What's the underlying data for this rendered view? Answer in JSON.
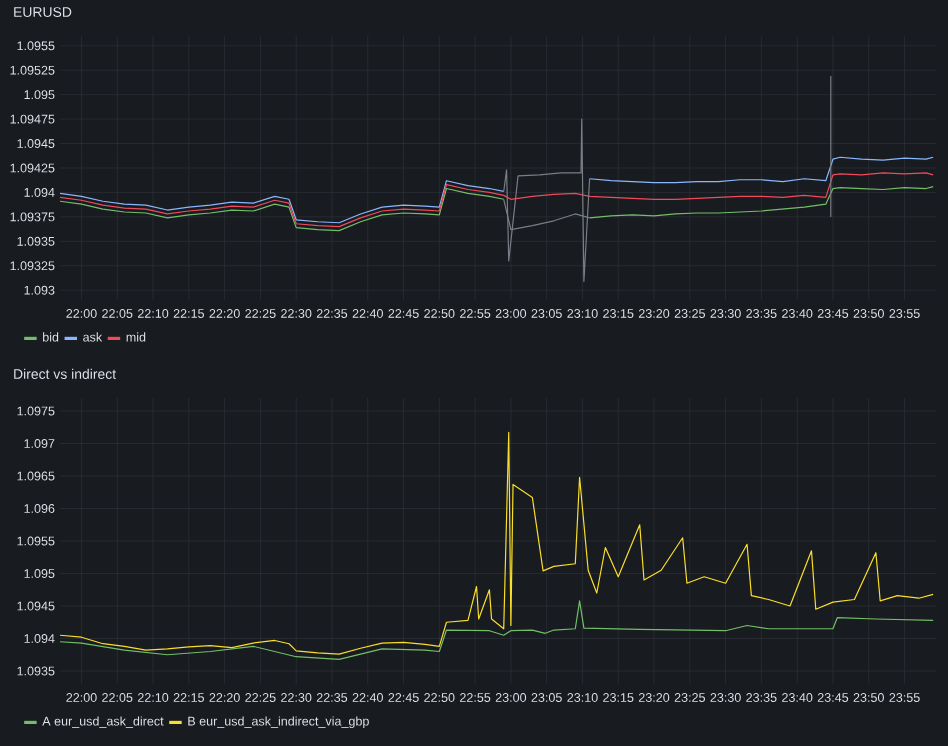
{
  "chart_data": [
    {
      "type": "line",
      "title": "EURUSD",
      "grid": true,
      "legend": "bottom",
      "xlim": [
        21.95,
        23.99
      ],
      "ylim": [
        1.0929,
        1.0956
      ],
      "xticks": [
        {
          "value": 22.0,
          "label": "22:00"
        },
        {
          "value": 22.0833,
          "label": "22:05"
        },
        {
          "value": 22.1667,
          "label": "22:10"
        },
        {
          "value": 22.25,
          "label": "22:15"
        },
        {
          "value": 22.3333,
          "label": "22:20"
        },
        {
          "value": 22.4167,
          "label": "22:25"
        },
        {
          "value": 22.5,
          "label": "22:30"
        },
        {
          "value": 22.5833,
          "label": "22:35"
        },
        {
          "value": 22.6667,
          "label": "22:40"
        },
        {
          "value": 22.75,
          "label": "22:45"
        },
        {
          "value": 22.8333,
          "label": "22:50"
        },
        {
          "value": 22.9167,
          "label": "22:55"
        },
        {
          "value": 23.0,
          "label": "23:00"
        },
        {
          "value": 23.0833,
          "label": "23:05"
        },
        {
          "value": 23.1667,
          "label": "23:10"
        },
        {
          "value": 23.25,
          "label": "23:15"
        },
        {
          "value": 23.3333,
          "label": "23:20"
        },
        {
          "value": 23.4167,
          "label": "23:25"
        },
        {
          "value": 23.5,
          "label": "23:30"
        },
        {
          "value": 23.5833,
          "label": "23:35"
        },
        {
          "value": 23.6667,
          "label": "23:40"
        },
        {
          "value": 23.75,
          "label": "23:45"
        },
        {
          "value": 23.8333,
          "label": "23:50"
        },
        {
          "value": 23.9167,
          "label": "23:55"
        }
      ],
      "yticks": [
        1.093,
        1.09325,
        1.0935,
        1.09375,
        1.094,
        1.09425,
        1.0945,
        1.09475,
        1.095,
        1.09525,
        1.0955
      ],
      "series": [
        {
          "name": "bid",
          "color": "#73bf69",
          "x": [
            21.95,
            22.0,
            22.05,
            22.1,
            22.15,
            22.2,
            22.25,
            22.3,
            22.35,
            22.4,
            22.45,
            22.4833,
            22.5,
            22.55,
            22.6,
            22.65,
            22.7,
            22.75,
            22.8,
            22.8333,
            22.85,
            22.9,
            22.95,
            22.9833,
            23.0,
            23.1833,
            23.2333,
            23.2833,
            23.3333,
            23.3833,
            23.4333,
            23.4833,
            23.5333,
            23.5833,
            23.6333,
            23.6833,
            23.7333,
            23.75,
            23.7667,
            23.8167,
            23.8667,
            23.9167,
            23.9667,
            23.9833
          ],
          "values": [
            1.09391,
            1.09388,
            1.09383,
            1.0938,
            1.09379,
            1.09374,
            1.09377,
            1.09379,
            1.09382,
            1.09381,
            1.09388,
            1.09385,
            1.09364,
            1.09362,
            1.09361,
            1.0937,
            1.09377,
            1.09379,
            1.09378,
            1.09377,
            1.09404,
            1.09399,
            1.09396,
            1.09393,
            null,
            1.09374,
            1.09376,
            1.09377,
            1.09376,
            1.09378,
            1.09379,
            1.09379,
            1.0938,
            1.09381,
            1.09383,
            1.09385,
            1.09388,
            1.09404,
            1.09405,
            1.09404,
            1.09403,
            1.09405,
            1.09404,
            1.09406
          ]
        },
        {
          "name": "ask",
          "color": "#8ab8ff",
          "x": [
            21.95,
            22.0,
            22.05,
            22.1,
            22.15,
            22.2,
            22.25,
            22.3,
            22.35,
            22.4,
            22.45,
            22.4833,
            22.5,
            22.55,
            22.6,
            22.65,
            22.7,
            22.75,
            22.8,
            22.8333,
            22.85,
            22.9,
            22.95,
            22.9833,
            23.0,
            23.1833,
            23.2333,
            23.2833,
            23.3333,
            23.3833,
            23.4333,
            23.4833,
            23.5333,
            23.5833,
            23.6333,
            23.6833,
            23.7333,
            23.75,
            23.7667,
            23.8167,
            23.8667,
            23.9167,
            23.9667,
            23.9833
          ],
          "values": [
            1.09399,
            1.09396,
            1.09391,
            1.09388,
            1.09387,
            1.09382,
            1.09385,
            1.09387,
            1.0939,
            1.09389,
            1.09396,
            1.09393,
            1.09372,
            1.0937,
            1.09369,
            1.09378,
            1.09385,
            1.09387,
            1.09386,
            1.09385,
            1.09412,
            1.09407,
            1.09404,
            1.09401,
            null,
            1.09414,
            1.09412,
            1.09411,
            1.0941,
            1.0941,
            1.09411,
            1.09411,
            1.09413,
            1.09413,
            1.09411,
            1.09414,
            1.09412,
            1.09434,
            1.09436,
            1.09434,
            1.09433,
            1.09435,
            1.09434,
            1.09436
          ]
        },
        {
          "name": "mid",
          "color": "#f2495c",
          "x": [
            21.95,
            22.0,
            22.05,
            22.1,
            22.15,
            22.2,
            22.25,
            22.3,
            22.35,
            22.4,
            22.45,
            22.4833,
            22.5,
            22.55,
            22.6,
            22.65,
            22.7,
            22.75,
            22.8,
            22.8333,
            22.85,
            22.9,
            22.95,
            22.9833,
            23.0,
            23.05,
            23.1,
            23.15,
            23.1833,
            23.2333,
            23.2833,
            23.3333,
            23.3833,
            23.4333,
            23.4833,
            23.5333,
            23.5833,
            23.6333,
            23.6833,
            23.7333,
            23.75,
            23.7667,
            23.8167,
            23.8667,
            23.9167,
            23.9667,
            23.9833
          ],
          "values": [
            1.09395,
            1.09392,
            1.09387,
            1.09384,
            1.09383,
            1.09378,
            1.09381,
            1.09383,
            1.09386,
            1.09385,
            1.09392,
            1.09389,
            1.09368,
            1.09366,
            1.09365,
            1.09374,
            1.09381,
            1.09383,
            1.09382,
            1.09381,
            1.09408,
            1.09403,
            1.094,
            1.09397,
            1.09393,
            1.09396,
            1.09398,
            1.09399,
            1.09396,
            1.09395,
            1.09394,
            1.09393,
            1.09393,
            1.09394,
            1.09395,
            1.09396,
            1.09396,
            1.09395,
            1.09397,
            1.09395,
            1.09418,
            1.09419,
            1.09418,
            1.0942,
            1.09419,
            1.0942,
            1.09418
          ]
        },
        {
          "color": "#7a7d85",
          "x": [
            22.9833,
            22.99,
            22.995,
            23.0167,
            23.0667,
            23.1167,
            23.1633,
            23.165,
            23.17,
            23.1833
          ],
          "values": [
            1.09401,
            1.09423,
            1.0933,
            1.09417,
            1.09418,
            1.0942,
            1.0942,
            1.09475,
            1.09309,
            1.09414
          ]
        },
        {
          "color": "#7a7d85",
          "x": [
            22.9833,
            23.0,
            23.05,
            23.1,
            23.15,
            23.1833
          ],
          "values": [
            1.09393,
            1.09362,
            1.09366,
            1.09371,
            1.09378,
            1.09374
          ]
        },
        {
          "color": "#7a7d85",
          "x": [
            23.745,
            23.745
          ],
          "values": [
            1.09519,
            1.09375
          ]
        }
      ]
    },
    {
      "type": "line",
      "title": "Direct vs indirect",
      "grid": true,
      "legend": "bottom",
      "xlim": [
        21.95,
        23.99
      ],
      "ylim": [
        1.0933,
        1.0977
      ],
      "xticks": [
        {
          "value": 22.0,
          "label": "22:00"
        },
        {
          "value": 22.0833,
          "label": "22:05"
        },
        {
          "value": 22.1667,
          "label": "22:10"
        },
        {
          "value": 22.25,
          "label": "22:15"
        },
        {
          "value": 22.3333,
          "label": "22:20"
        },
        {
          "value": 22.4167,
          "label": "22:25"
        },
        {
          "value": 22.5,
          "label": "22:30"
        },
        {
          "value": 22.5833,
          "label": "22:35"
        },
        {
          "value": 22.6667,
          "label": "22:40"
        },
        {
          "value": 22.75,
          "label": "22:45"
        },
        {
          "value": 22.8333,
          "label": "22:50"
        },
        {
          "value": 22.9167,
          "label": "22:55"
        },
        {
          "value": 23.0,
          "label": "23:00"
        },
        {
          "value": 23.0833,
          "label": "23:05"
        },
        {
          "value": 23.1667,
          "label": "23:10"
        },
        {
          "value": 23.25,
          "label": "23:15"
        },
        {
          "value": 23.3333,
          "label": "23:20"
        },
        {
          "value": 23.4167,
          "label": "23:25"
        },
        {
          "value": 23.5,
          "label": "23:30"
        },
        {
          "value": 23.5833,
          "label": "23:35"
        },
        {
          "value": 23.6667,
          "label": "23:40"
        },
        {
          "value": 23.75,
          "label": "23:45"
        },
        {
          "value": 23.8333,
          "label": "23:50"
        },
        {
          "value": 23.9167,
          "label": "23:55"
        }
      ],
      "yticks": [
        1.0935,
        1.094,
        1.0945,
        1.095,
        1.0955,
        1.096,
        1.0965,
        1.097,
        1.0975
      ],
      "series": [
        {
          "name": "A eur_usd_ask_direct",
          "color": "#73bf69",
          "x": [
            21.95,
            22.0,
            22.1,
            22.2,
            22.3,
            22.4,
            22.5,
            22.6,
            22.7,
            22.8,
            22.8333,
            22.85,
            22.95,
            22.9833,
            23.0,
            23.05,
            23.08,
            23.1,
            23.15,
            23.16,
            23.17,
            23.3,
            23.5,
            23.55,
            23.6,
            23.75,
            23.76,
            23.85,
            23.9833
          ],
          "values": [
            1.09395,
            1.09393,
            1.09382,
            1.09375,
            1.0938,
            1.09388,
            1.09372,
            1.09368,
            1.09384,
            1.09382,
            1.0938,
            1.09413,
            1.09412,
            1.09405,
            1.09412,
            1.09413,
            1.09408,
            1.09413,
            1.09415,
            1.09458,
            1.09416,
            1.09414,
            1.09412,
            1.0942,
            1.09415,
            1.09415,
            1.09432,
            1.0943,
            1.09428
          ]
        },
        {
          "name": "B eur_usd_ask_indirect_via_gbp",
          "color": "#fade2a",
          "x": [
            21.95,
            22.0,
            22.05,
            22.1,
            22.15,
            22.2,
            22.25,
            22.3,
            22.35,
            22.4,
            22.45,
            22.4833,
            22.5,
            22.55,
            22.6,
            22.65,
            22.7,
            22.75,
            22.8,
            22.8333,
            22.85,
            22.9,
            22.92,
            22.925,
            22.95,
            22.955,
            22.9833,
            22.995,
            23.0,
            23.005,
            23.05,
            23.075,
            23.1,
            23.15,
            23.16,
            23.18,
            23.2,
            23.22,
            23.25,
            23.3,
            23.31,
            23.35,
            23.4,
            23.41,
            23.45,
            23.5,
            23.55,
            23.56,
            23.6,
            23.65,
            23.7,
            23.71,
            23.75,
            23.8,
            23.85,
            23.86,
            23.9,
            23.95,
            23.9833
          ],
          "values": [
            1.09405,
            1.09402,
            1.09392,
            1.09388,
            1.09382,
            1.09384,
            1.09387,
            1.09389,
            1.09386,
            1.09393,
            1.09397,
            1.09392,
            1.09381,
            1.09378,
            1.09376,
            1.09385,
            1.09393,
            1.09394,
            1.09391,
            1.09388,
            1.09425,
            1.09428,
            1.0948,
            1.0943,
            1.09475,
            1.0943,
            1.09415,
            1.09717,
            1.0942,
            1.09637,
            1.09617,
            1.09504,
            1.09511,
            1.09515,
            1.09648,
            1.09505,
            1.0947,
            1.0954,
            1.09495,
            1.09575,
            1.0949,
            1.09505,
            1.09555,
            1.09485,
            1.09495,
            1.09485,
            1.09545,
            1.09466,
            1.0946,
            1.0945,
            1.09535,
            1.09445,
            1.09456,
            1.0946,
            1.09532,
            1.09458,
            1.09466,
            1.09462,
            1.09468
          ]
        }
      ]
    }
  ]
}
